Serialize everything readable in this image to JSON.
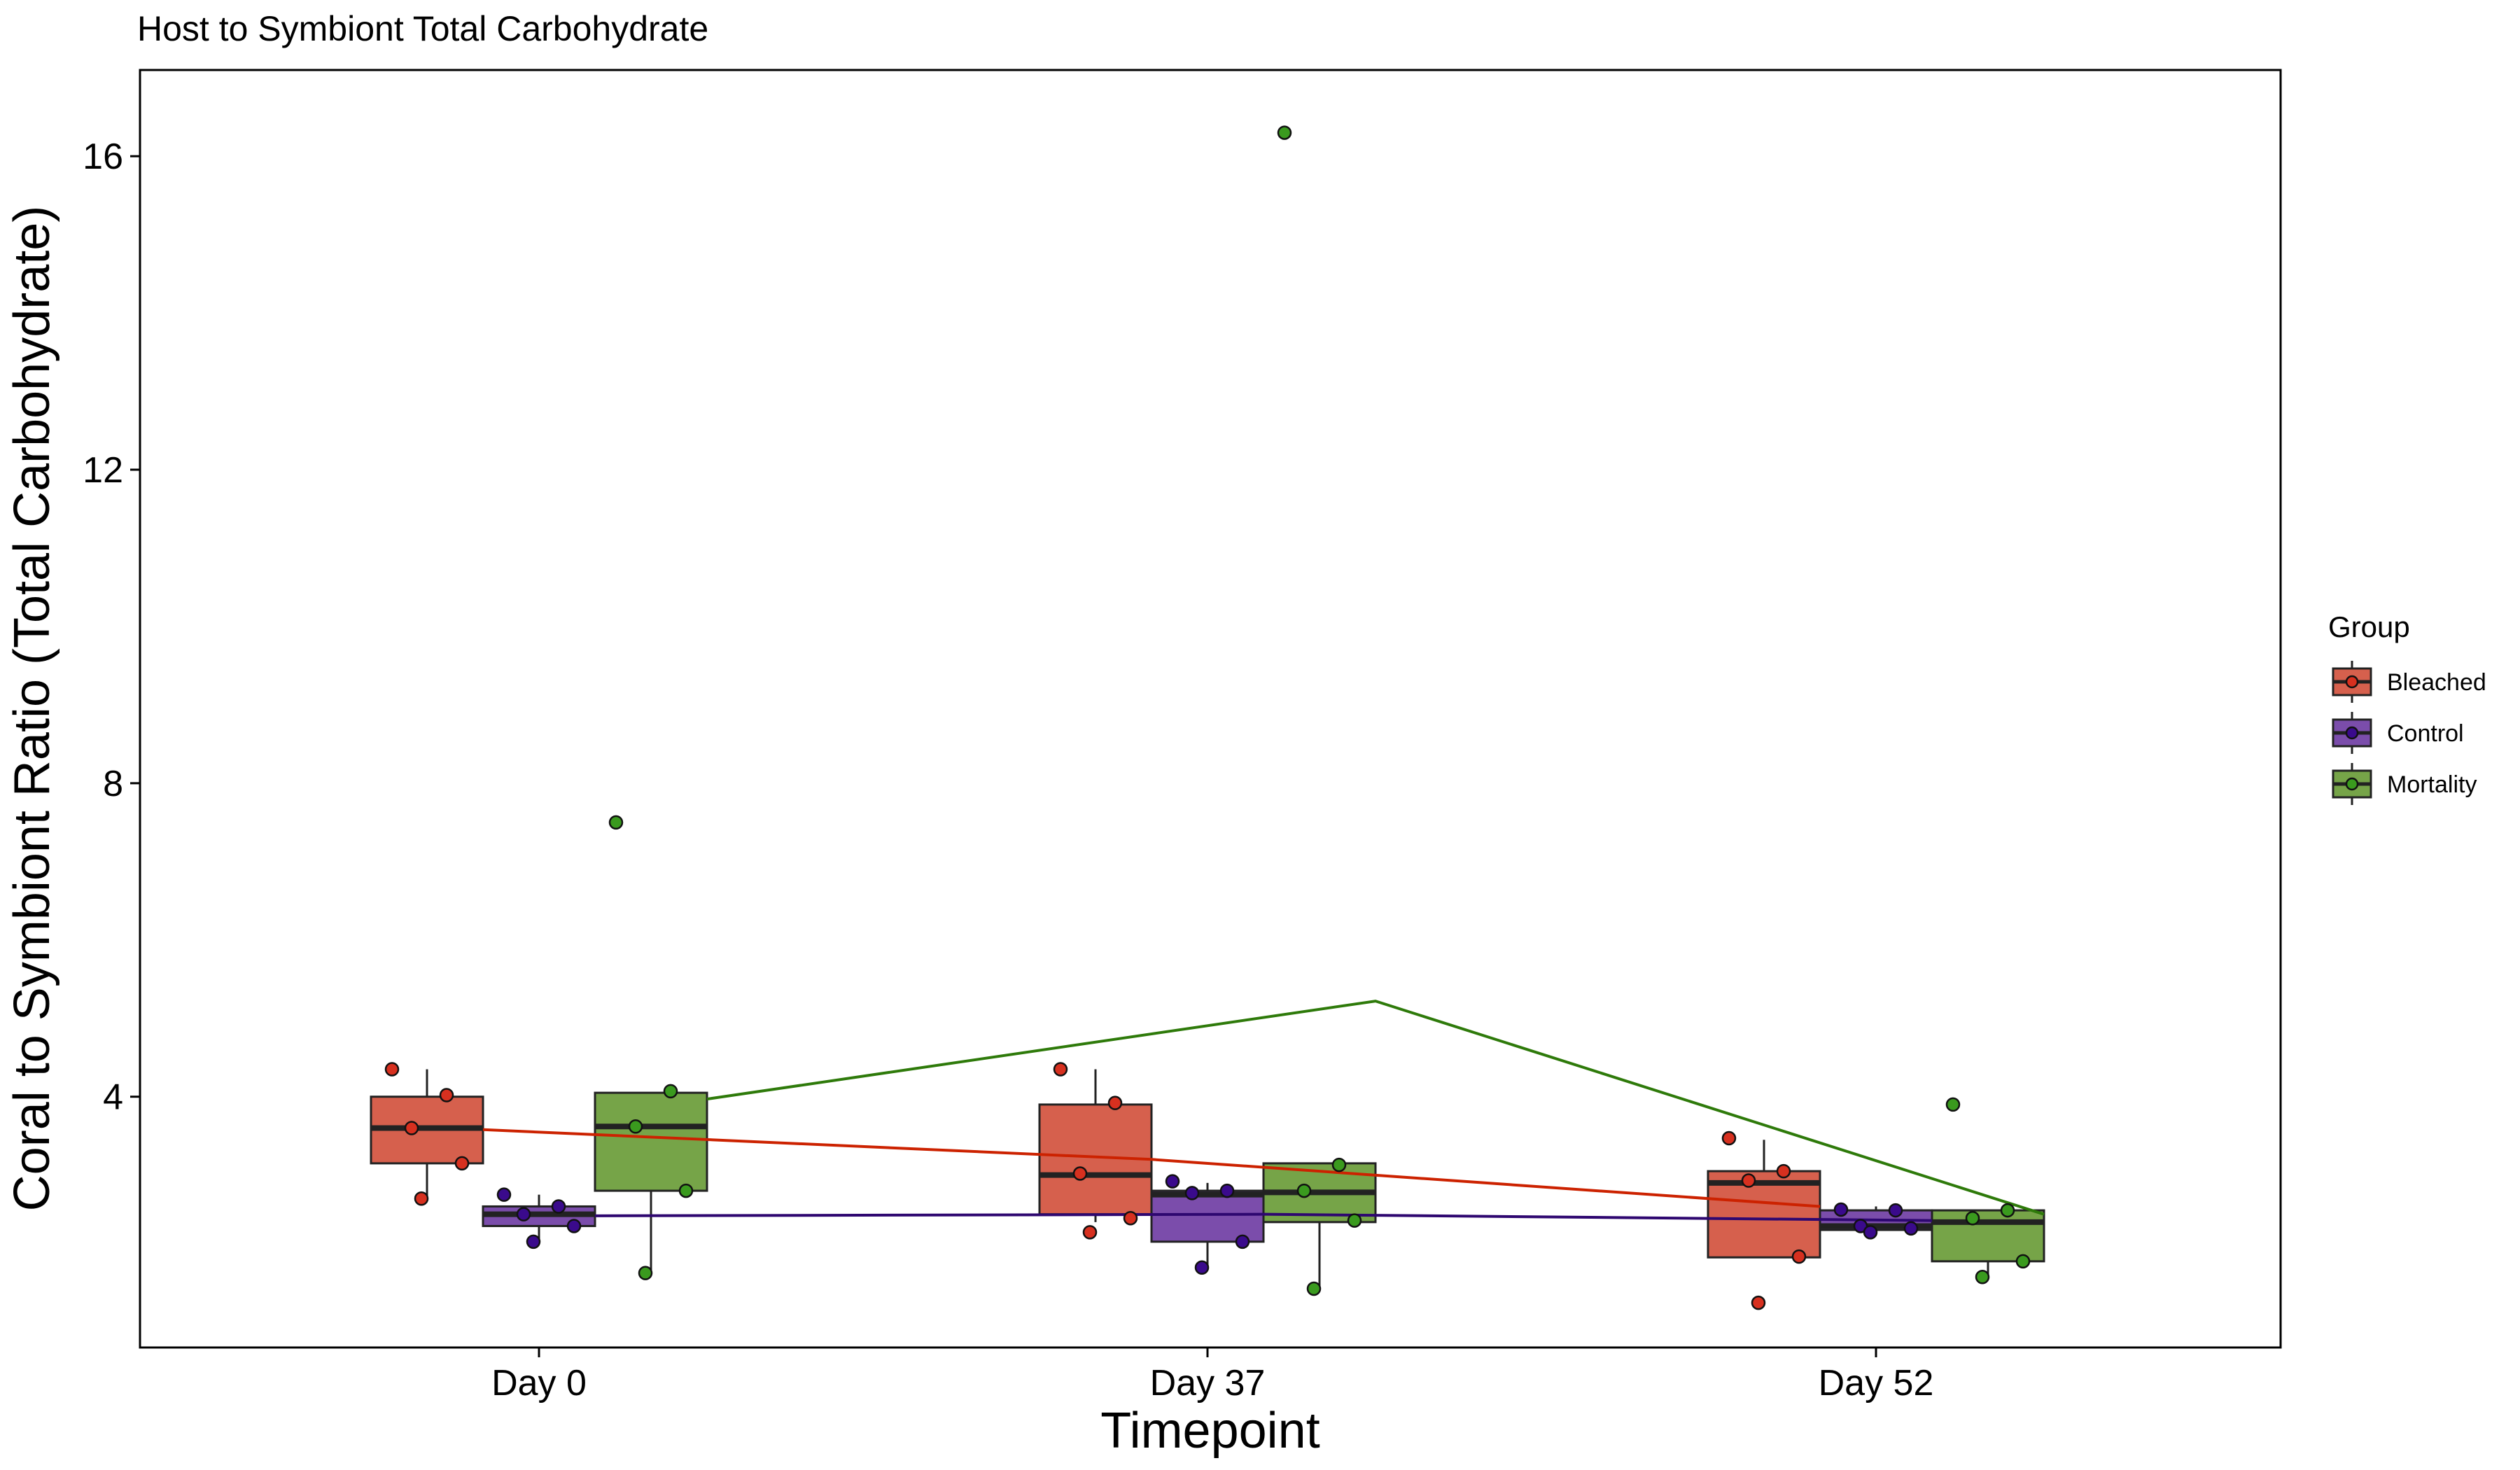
{
  "chart_data": {
    "type": "box",
    "title": "Host to Symbiont Total Carbohydrate",
    "xlabel": "Timepoint",
    "ylabel": "Coral to Symbiont Ratio (Total Carbohydrate)",
    "categories": [
      "Day 0",
      "Day 37",
      "Day 52"
    ],
    "ylim": [
      0.8,
      17.1
    ],
    "yticks": [
      4,
      8,
      12,
      16
    ],
    "grid": false,
    "legend": {
      "title": "Group",
      "position": "right"
    },
    "series": [
      {
        "name": "Bleached",
        "color": "#D6604D",
        "point_color": "#D7301F",
        "line_color": "#CC2200",
        "boxes": [
          {
            "whisker_low": 2.7,
            "q1": 3.15,
            "median": 3.6,
            "q3": 4.0,
            "whisker_high": 4.35
          },
          {
            "whisker_low": 2.4,
            "q1": 2.5,
            "median": 3.0,
            "q3": 3.9,
            "whisker_high": 4.35
          },
          {
            "whisker_low": 1.95,
            "q1": 1.95,
            "median": 2.9,
            "q3": 3.05,
            "whisker_high": 3.45
          }
        ],
        "means": [
          3.58,
          3.2,
          2.6
        ],
        "points": [
          [
            4.35,
            4.02,
            3.6,
            3.15,
            2.7
          ],
          [
            4.35,
            3.92,
            3.02,
            2.45,
            2.27
          ],
          [
            3.47,
            3.05,
            2.93,
            1.96,
            1.37
          ]
        ]
      },
      {
        "name": "Control",
        "color": "#7B4DAB",
        "point_color": "#3A0A8C",
        "line_color": "#2E0770",
        "boxes": [
          {
            "whisker_low": 2.15,
            "q1": 2.35,
            "median": 2.5,
            "q3": 2.6,
            "whisker_high": 2.75
          },
          {
            "whisker_low": 1.85,
            "q1": 2.15,
            "median": 2.75,
            "q3": 2.8,
            "whisker_high": 2.9
          },
          {
            "whisker_low": 2.3,
            "q1": 2.3,
            "median": 2.35,
            "q3": 2.55,
            "whisker_high": 2.6
          }
        ],
        "means": [
          2.48,
          2.5,
          2.42
        ],
        "points": [
          [
            2.75,
            2.6,
            2.5,
            2.35,
            2.15
          ],
          [
            2.92,
            2.8,
            2.77,
            2.15,
            1.82
          ],
          [
            2.56,
            2.55,
            2.35,
            2.32,
            2.27
          ]
        ]
      },
      {
        "name": "Mortality",
        "color": "#76A448",
        "point_color": "#3A9A1E",
        "line_color": "#2E7A0A",
        "boxes": [
          {
            "whisker_low": 1.75,
            "q1": 2.8,
            "median": 3.62,
            "q3": 4.05,
            "whisker_high": 4.05
          },
          {
            "whisker_low": 1.55,
            "q1": 2.4,
            "median": 2.78,
            "q3": 3.15,
            "whisker_high": 3.15
          },
          {
            "whisker_low": 1.7,
            "q1": 1.9,
            "median": 2.4,
            "q3": 2.55,
            "whisker_high": 2.55
          }
        ],
        "means": [
          3.97,
          5.22,
          2.5
        ],
        "points": [
          [
            7.5,
            4.07,
            3.62,
            2.8,
            1.75
          ],
          [
            16.3,
            3.13,
            2.8,
            2.42,
            1.55
          ],
          [
            3.9,
            2.55,
            2.45,
            1.9,
            1.7
          ]
        ]
      }
    ]
  }
}
